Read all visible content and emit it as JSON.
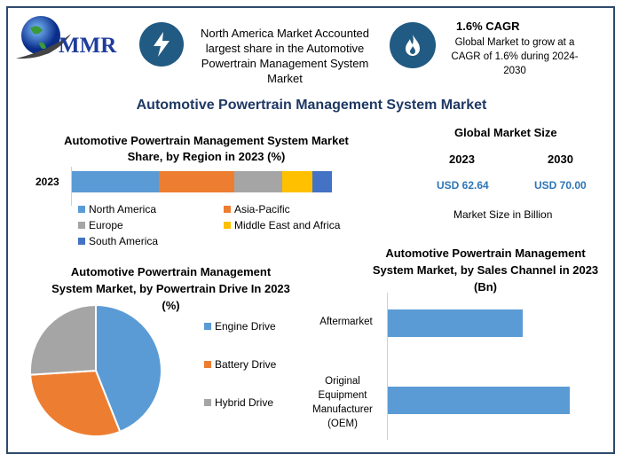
{
  "logo": {
    "text": "MMR"
  },
  "highlight1": {
    "icon": "lightning-icon",
    "text": "North America Market Accounted largest share in the Automotive Powertrain Management System Market"
  },
  "highlight2": {
    "icon": "flame-icon",
    "title": "1.6% CAGR",
    "text": "Global Market to grow at a CAGR of 1.6% during 2024-2030"
  },
  "main_title": "Automotive Powertrain Management System Market",
  "market_size": {
    "title": "Global Market Size",
    "years": [
      "2023",
      "2030"
    ],
    "values": [
      "USD 62.64",
      "USD 70.00"
    ],
    "note": "Market Size in Billion"
  },
  "colors": {
    "navy": "#215a82",
    "title": "#1f3864",
    "blue": "#5b9bd5",
    "orange": "#ed7d31",
    "gray": "#a5a5a5",
    "yellow": "#ffc000",
    "darkblue": "#4472c4"
  },
  "chart_data": [
    {
      "type": "bar",
      "orientation": "horizontal-stacked",
      "title": "Automotive Powertrain Management System Market Share, by Region in 2023 (%)",
      "categories": [
        "2023"
      ],
      "series": [
        {
          "name": "North America",
          "values": [
            33.5
          ]
        },
        {
          "name": "Asia-Pacific",
          "values": [
            29
          ]
        },
        {
          "name": "Europe",
          "values": [
            18.5
          ]
        },
        {
          "name": "Middle East and Africa",
          "values": [
            11.5
          ]
        },
        {
          "name": "South America",
          "values": [
            7.5
          ]
        }
      ],
      "legend": "bottom"
    },
    {
      "type": "pie",
      "title": "Automotive Powertrain Management System Market, by Powertrain Drive In 2023 (%)",
      "categories": [
        "Engine Drive",
        "Battery Drive",
        "Hybrid Drive"
      ],
      "values": [
        44,
        30,
        26
      ],
      "legend": "right"
    },
    {
      "type": "bar",
      "orientation": "horizontal",
      "title": "Automotive Powertrain Management System Market, by Sales Channel in 2023 (Bn)",
      "categories": [
        "Aftermarket",
        "Original Equipment Manufacturer (OEM)"
      ],
      "values": [
        26.7,
        36.0
      ]
    }
  ]
}
